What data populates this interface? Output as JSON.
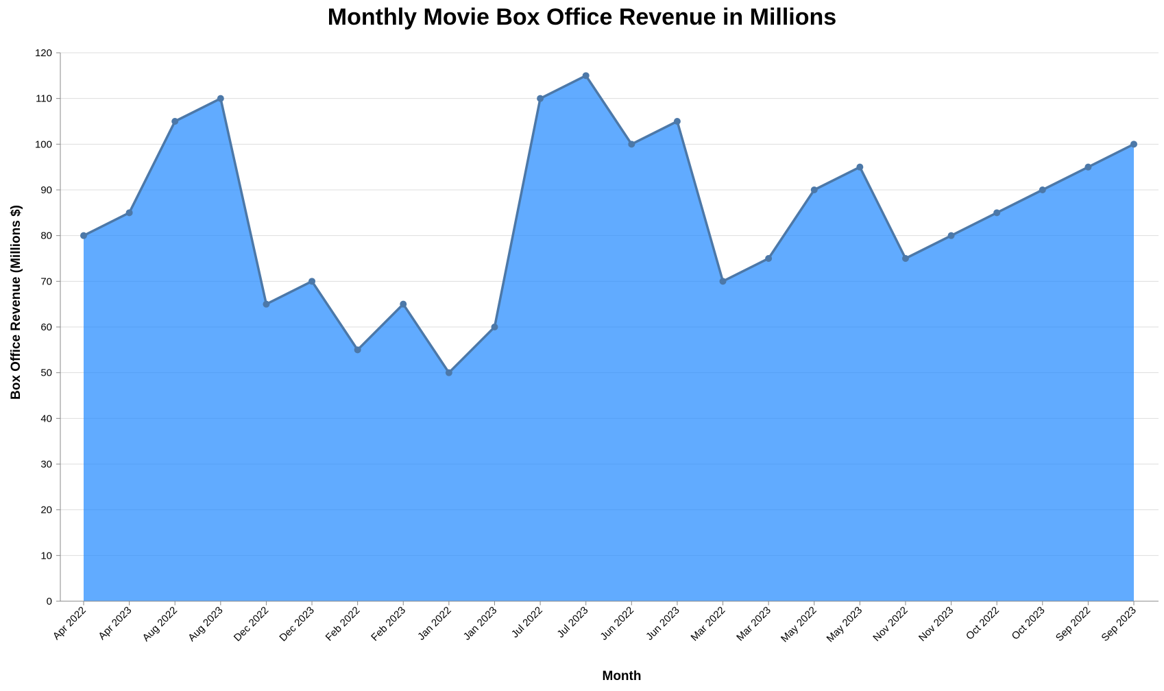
{
  "chart_data": {
    "type": "area",
    "title": "Monthly Movie Box Office Revenue in Millions",
    "xlabel": "Month",
    "ylabel": "Box Office Revenue (Millions $)",
    "categories": [
      "Apr 2022",
      "Apr 2023",
      "Aug 2022",
      "Aug 2023",
      "Dec 2022",
      "Dec 2023",
      "Feb 2022",
      "Feb 2023",
      "Jan 2022",
      "Jan 2023",
      "Jul 2022",
      "Jul 2023",
      "Jun 2022",
      "Jun 2023",
      "Mar 2022",
      "Mar 2023",
      "May 2022",
      "May 2023",
      "Nov 2022",
      "Nov 2023",
      "Oct 2022",
      "Oct 2023",
      "Sep 2022",
      "Sep 2023"
    ],
    "values": [
      80,
      85,
      105,
      110,
      65,
      70,
      55,
      65,
      50,
      60,
      110,
      115,
      100,
      105,
      70,
      75,
      90,
      95,
      75,
      80,
      85,
      90,
      95,
      100
    ],
    "ylim": [
      0,
      120
    ],
    "yticks": [
      0,
      10,
      20,
      30,
      40,
      50,
      60,
      70,
      80,
      90,
      100,
      110,
      120
    ],
    "grid": true,
    "colors": {
      "area": "#1e88ff",
      "line": "#4c78a8",
      "point": "#4c78a8"
    }
  }
}
